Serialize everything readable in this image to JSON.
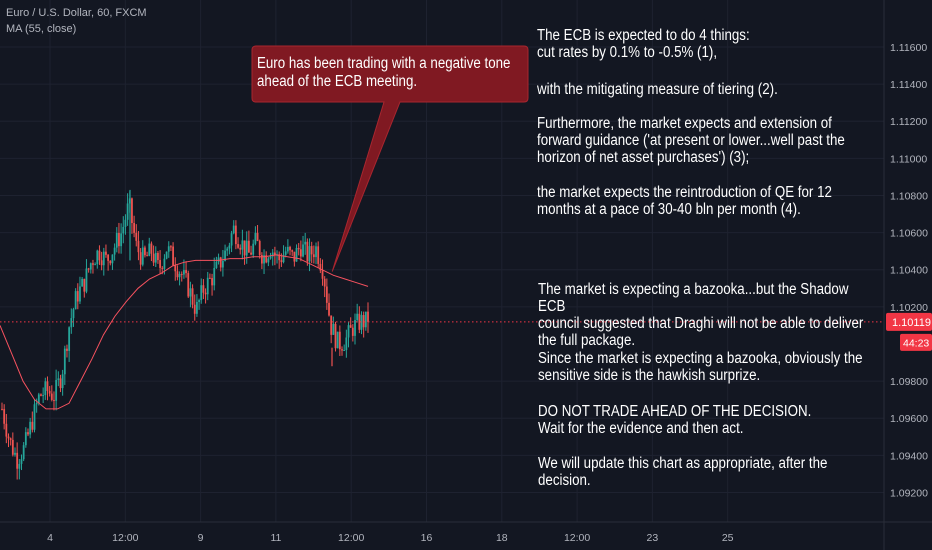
{
  "header": {
    "symbol_line": "Euro / U.S. Dollar, 60, FXCM",
    "indicator_line": "MA (55, close)"
  },
  "callout": {
    "text": "Euro has been trading with a negative tone\nahead of the ECB meeting."
  },
  "notes": {
    "block1": "The ECB is expected to do 4 things:\ncut rates by 0.1% to -0.5% (1),",
    "block2": "with the mitigating measure of tiering (2).",
    "block3": "Furthermore, the market expects and extension of\nforward guidance ('at present or lower...well past the\nhorizon of net asset purchases') (3);",
    "block4": "the market expects the reintroduction of QE for 12\nmonths at a pace of 30-40 bln per month (4).",
    "block5": "The market is expecting a bazooka...but the Shadow ECB\ncouncil suggested that Draghi will not be able to deliver\nthe full package.",
    "block6": "Since the market is expecting a bazooka, obviously the\nsensitive side is the hawkish surprize.",
    "block7": "DO NOT TRADE AHEAD OF THE DECISION.\nWait for the evidence and then act.",
    "block8": "We will update this chart as appropriate, after the\ndecision."
  },
  "price_label": {
    "value": "1.10119",
    "countdown": "44:23",
    "color": "#f23645"
  },
  "colors": {
    "up": "#26a69a",
    "down": "#ef5350",
    "ma": "#f7525f",
    "callout_bg": "#801922",
    "background": "#131722"
  },
  "chart_data": {
    "type": "candlestick",
    "symbol": "Euro / U.S. Dollar",
    "timeframe": "60",
    "source": "FXCM",
    "indicator": "MA (55, close)",
    "ylim": [
      1.091,
      1.1174
    ],
    "y_ticks": [
      "1.11600",
      "1.11400",
      "1.11200",
      "1.11000",
      "1.10800",
      "1.10600",
      "1.10400",
      "1.10200",
      "1.09800",
      "1.09600",
      "1.09400",
      "1.09200"
    ],
    "x_ticks": [
      "4",
      "12:00",
      "9",
      "11",
      "12:00",
      "16",
      "18",
      "12:00",
      "23",
      "25"
    ],
    "last_price": 1.10119,
    "close_path": [
      1.0965,
      1.0948,
      1.0938,
      1.0944,
      1.0958,
      1.0972,
      1.0975,
      1.0972,
      1.0984,
      1.101,
      1.1026,
      1.1033,
      1.1045,
      1.105,
      1.1045,
      1.1052,
      1.106,
      1.1075,
      1.1052,
      1.1045,
      1.105,
      1.104,
      1.1052,
      1.1045,
      1.1038,
      1.103,
      1.1018,
      1.103,
      1.1035,
      1.1042,
      1.105,
      1.1062,
      1.1055,
      1.1048,
      1.1055,
      1.1047,
      1.1052,
      1.1045,
      1.105,
      1.1046,
      1.1053,
      1.1047,
      1.1052,
      1.104,
      1.101,
      1.1,
      1.1002,
      1.1009,
      1.1012,
      1.1012
    ],
    "ma_path": [
      1.101,
      1.0995,
      1.098,
      1.097,
      1.0965,
      1.0965,
      1.0968,
      1.098,
      1.0992,
      1.1005,
      1.1015,
      1.1023,
      1.103,
      1.1035,
      1.1038,
      1.1042,
      1.1044,
      1.1045,
      1.1045,
      1.1045,
      1.1046,
      1.1046,
      1.1047,
      1.1047,
      1.1048,
      1.1047,
      1.1046,
      1.1043,
      1.104,
      1.1037,
      1.1035,
      1.1033,
      1.1031
    ],
    "callout_anchor": {
      "x_tick": "12:00",
      "y": 1.1039
    }
  }
}
